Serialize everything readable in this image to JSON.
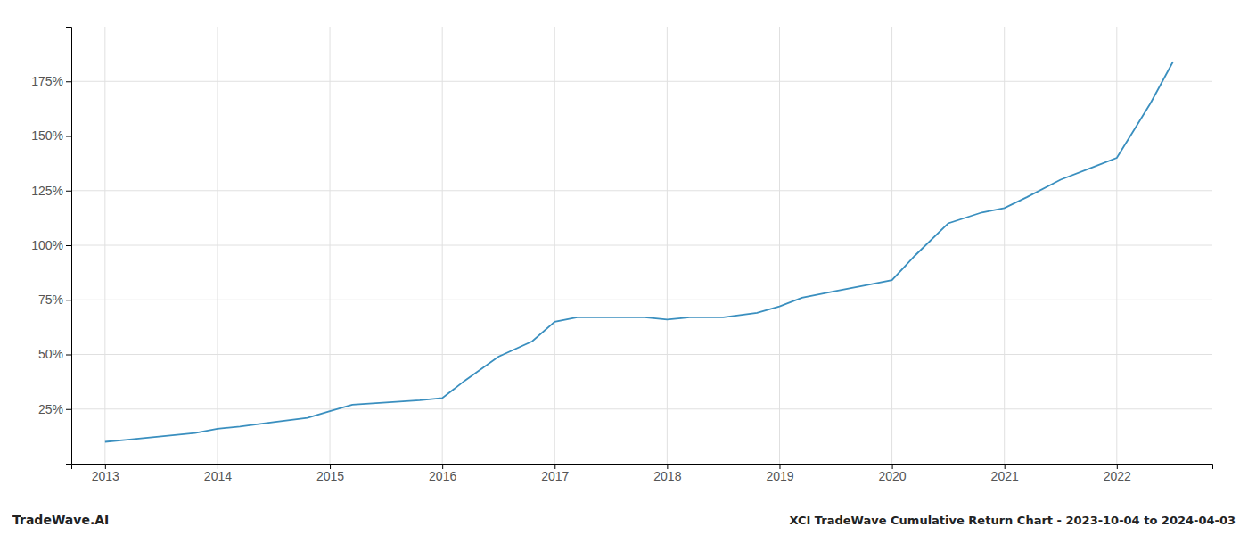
{
  "chart_data": {
    "type": "line",
    "title": "XCI TradeWave Cumulative Return Chart - 2023-10-04 to 2024-04-03",
    "annotations": [
      "TradeWave.AI"
    ],
    "color": "#3a8fbf",
    "grid": true,
    "x": [
      2013.0,
      2013.2,
      2013.4,
      2013.6,
      2013.8,
      2014.0,
      2014.2,
      2014.5,
      2014.8,
      2015.0,
      2015.2,
      2015.5,
      2015.8,
      2016.0,
      2016.2,
      2016.5,
      2016.8,
      2017.0,
      2017.2,
      2017.5,
      2017.8,
      2018.0,
      2018.2,
      2018.5,
      2018.8,
      2019.0,
      2019.2,
      2019.5,
      2019.8,
      2020.0,
      2020.2,
      2020.5,
      2020.8,
      2021.0,
      2021.2,
      2021.5,
      2021.8,
      2022.0,
      2022.3,
      2022.5
    ],
    "values": [
      10,
      11,
      12,
      13,
      14,
      16,
      17,
      19,
      21,
      24,
      27,
      28,
      29,
      30,
      38,
      49,
      56,
      65,
      67,
      67,
      67,
      66,
      67,
      67,
      69,
      72,
      76,
      79,
      82,
      84,
      95,
      110,
      115,
      117,
      122,
      130,
      136,
      140,
      165,
      184
    ],
    "xlim": [
      2012.7,
      2022.85
    ],
    "xticks": [
      2013,
      2014,
      2015,
      2016,
      2017,
      2018,
      2019,
      2020,
      2021,
      2022
    ],
    "ylim": [
      0,
      200
    ],
    "yticks": [
      {
        "value": 25,
        "label": "25%"
      },
      {
        "value": 50,
        "label": "50%"
      },
      {
        "value": 75,
        "label": "75%"
      },
      {
        "value": 100,
        "label": "100%"
      },
      {
        "value": 125,
        "label": "125%"
      },
      {
        "value": 150,
        "label": "150%"
      },
      {
        "value": 175,
        "label": "175%"
      }
    ]
  }
}
